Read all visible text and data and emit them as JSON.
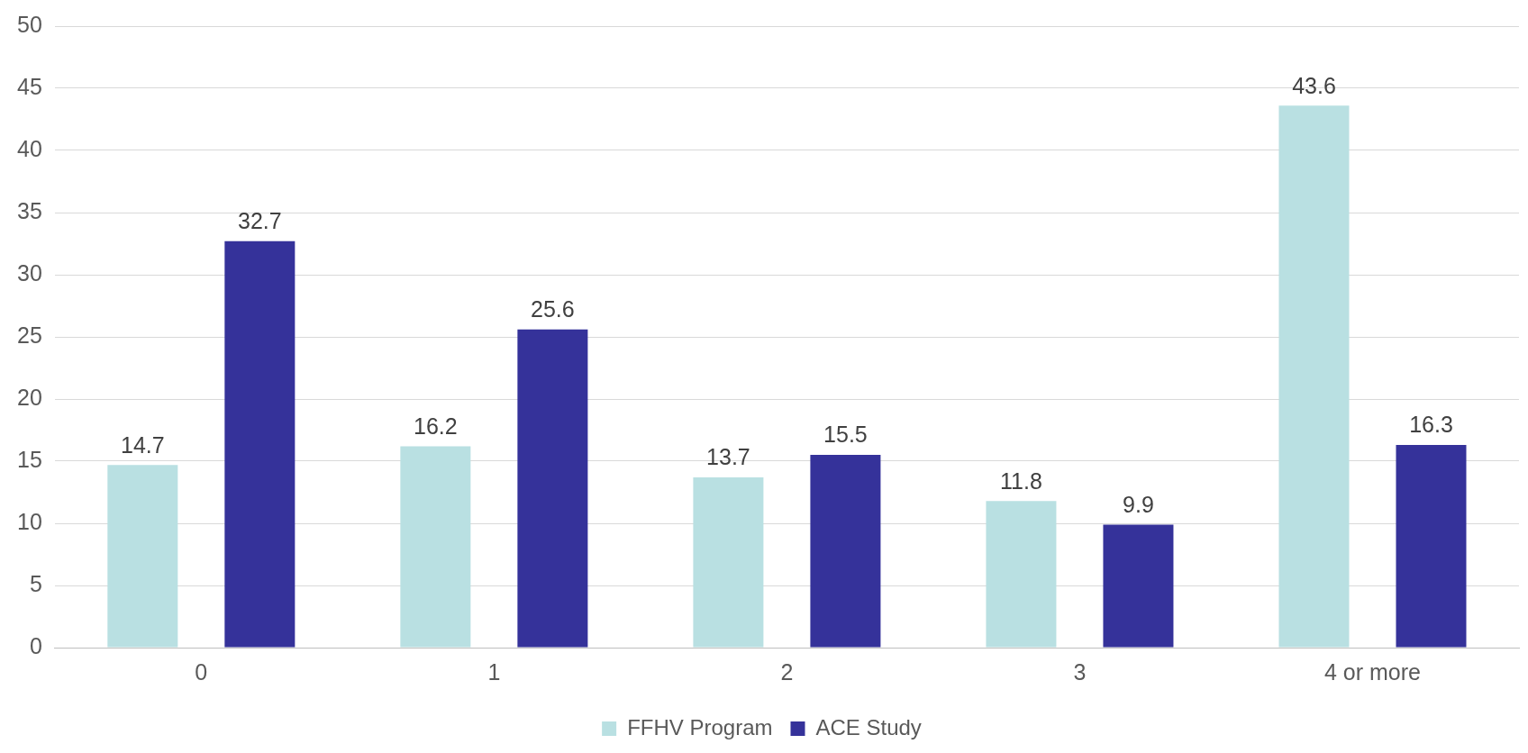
{
  "chart_data": {
    "type": "bar",
    "categories": [
      "0",
      "1",
      "2",
      "3",
      "4 or more"
    ],
    "series": [
      {
        "name": "FFHV Program",
        "color": "#b9e0e2",
        "values": [
          14.7,
          16.2,
          13.7,
          11.8,
          43.6
        ]
      },
      {
        "name": "ACE Study",
        "color": "#35329a",
        "values": [
          32.7,
          25.6,
          15.5,
          9.9,
          16.3
        ]
      }
    ],
    "ylim": [
      0,
      50
    ],
    "yticks": [
      0,
      5,
      10,
      15,
      20,
      25,
      30,
      35,
      40,
      45,
      50
    ],
    "grid": "y",
    "legend": "bottom",
    "data_labels": true
  }
}
